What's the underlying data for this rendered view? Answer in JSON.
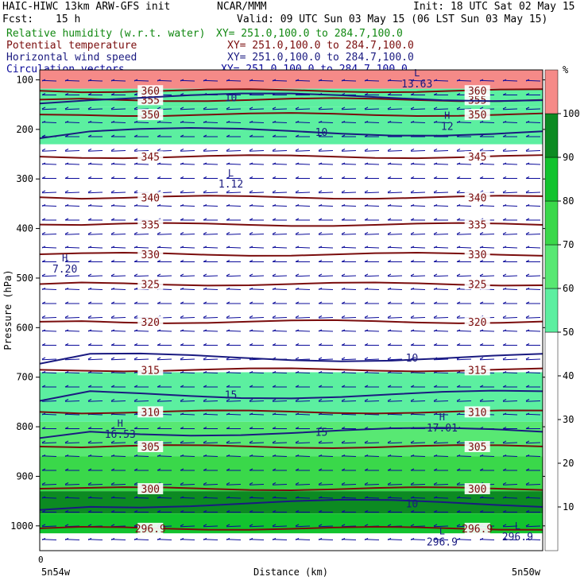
{
  "header": {
    "title": "HAIC-HIWC 13km ARW-GFS init",
    "org": "NCAR/MMM",
    "init": "Init: 18 UTC Sat 02 May 15",
    "fcst_label": "Fcst:",
    "fcst_value": "15 h",
    "valid": "Valid: 09 UTC Sun 03 May 15 (06 LST Sun 03 May 15)",
    "fields": [
      {
        "name": "Relative humidity (w.r.t. water)",
        "xy": "XY= 251.0,100.0 to 284.7,100.0",
        "color": "#118811"
      },
      {
        "name": "Potential temperature",
        "xy": "XY= 251.0,100.0 to 284.7,100.0",
        "color": "#7a0c0c"
      },
      {
        "name": "Horizontal wind speed",
        "xy": "XY= 251.0,100.0 to 284.7,100.0",
        "color": "#1a1a80"
      },
      {
        "name": "Circulation vectors",
        "xy": "XY= 251.0,100.0 to 284.7,100.0",
        "color": "#0b0b9a"
      }
    ]
  },
  "chart_data": {
    "type": "heatmap",
    "xlabel": "Distance (km)",
    "ylabel": "Pressure (hPa)",
    "x_tick_zero": "0",
    "x_start_label": "5n54w",
    "x_end_label": "5n50w",
    "yticks": [
      100,
      200,
      300,
      400,
      500,
      600,
      700,
      800,
      900,
      1000
    ],
    "ylim": [
      1050,
      80
    ],
    "rh_colorbar": {
      "unit": "%",
      "ticks": [
        10,
        20,
        30,
        40,
        50,
        60,
        70,
        80,
        90,
        100
      ],
      "bands": [
        {
          "from": 0,
          "to": 50,
          "color": "#ffffff"
        },
        {
          "from": 50,
          "to": 60,
          "color": "#5cefa0"
        },
        {
          "from": 60,
          "to": 70,
          "color": "#58e873"
        },
        {
          "from": 70,
          "to": 80,
          "color": "#3ad84a"
        },
        {
          "from": 80,
          "to": 90,
          "color": "#12c32e"
        },
        {
          "from": 90,
          "to": 100,
          "color": "#0c8a22"
        },
        {
          "from": 100,
          "to": 110,
          "color": "#f58a88"
        }
      ]
    },
    "rh_layers": [
      {
        "top": 80,
        "bottom": 118,
        "rh": 105
      },
      {
        "top": 118,
        "bottom": 155,
        "rh": 55
      },
      {
        "top": 155,
        "bottom": 230,
        "rh": 58
      },
      {
        "top": 690,
        "bottom": 790,
        "rh": 55
      },
      {
        "top": 790,
        "bottom": 860,
        "rh": 68
      },
      {
        "top": 860,
        "bottom": 930,
        "rh": 75
      },
      {
        "top": 930,
        "bottom": 975,
        "rh": 93
      },
      {
        "top": 975,
        "bottom": 1015,
        "rh": 85
      }
    ],
    "theta_contours": [
      {
        "value": "345",
        "p": 255
      },
      {
        "value": "340",
        "p": 337
      },
      {
        "value": "335",
        "p": 392
      },
      {
        "value": "330",
        "p": 452
      },
      {
        "value": "325",
        "p": 512
      },
      {
        "value": "320",
        "p": 588
      },
      {
        "value": "315",
        "p": 685
      },
      {
        "value": "310",
        "p": 770
      },
      {
        "value": "305",
        "p": 840
      },
      {
        "value": "300",
        "p": 925
      },
      {
        "value": "296.9",
        "p": 1005
      },
      {
        "value": "355",
        "p": 140
      },
      {
        "value": "350",
        "p": 170
      },
      {
        "value": "360",
        "p": 122
      }
    ],
    "wind_contours": [
      {
        "value": "10",
        "p": 135
      },
      {
        "value": "10",
        "p": 205
      },
      {
        "value": "10",
        "p": 660
      },
      {
        "value": "15",
        "p": 735
      },
      {
        "value": "15",
        "p": 810
      },
      {
        "value": "10",
        "p": 955
      }
    ],
    "extrema": [
      {
        "kind": "L",
        "value": "1.12",
        "x": 0.38,
        "p": 298
      },
      {
        "kind": "H",
        "value": "7.20",
        "x": 0.05,
        "p": 470
      },
      {
        "kind": "H",
        "value": "12",
        "x": 0.81,
        "p": 182
      },
      {
        "kind": "H",
        "value": "17.01",
        "x": 0.8,
        "p": 790
      },
      {
        "kind": "H",
        "value": "16.53",
        "x": 0.16,
        "p": 803
      },
      {
        "kind": "L",
        "value": "13.63",
        "x": 0.75,
        "p": 96
      },
      {
        "kind": "L",
        "value": "296.9",
        "x": 0.95,
        "p": 1010
      },
      {
        "kind": "L",
        "value": "296.9",
        "x": 0.8,
        "p": 1020
      }
    ]
  }
}
